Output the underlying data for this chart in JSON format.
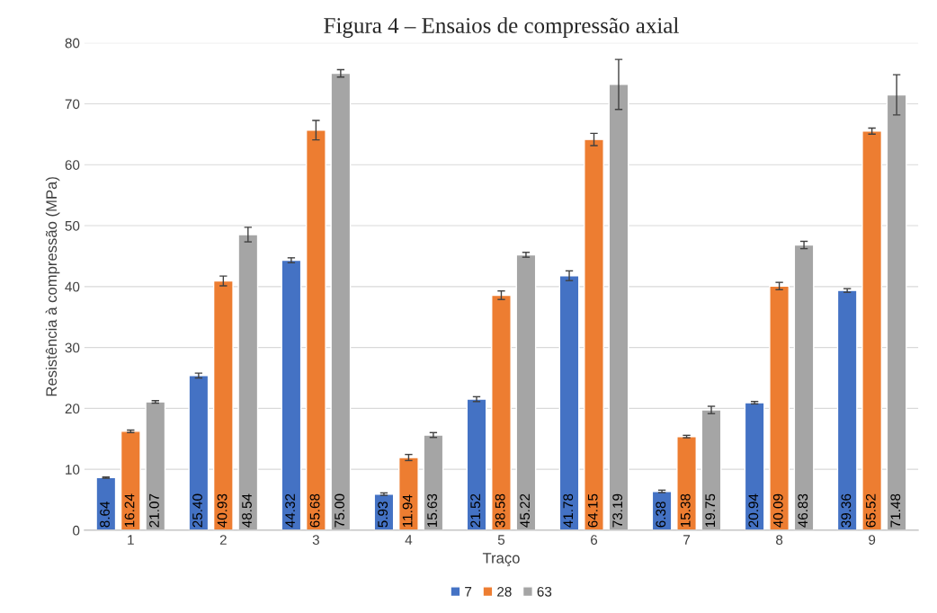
{
  "chart_data": {
    "type": "bar",
    "title": "Figura 4 – Ensaios de compressão axial",
    "xlabel": "Traço",
    "ylabel": "Resistência à compressão (MPa)",
    "categories": [
      "1",
      "2",
      "3",
      "4",
      "5",
      "6",
      "7",
      "8",
      "9"
    ],
    "series": [
      {
        "name": "7",
        "color": "#4472c4",
        "values": [
          8.64,
          25.4,
          44.32,
          5.93,
          21.52,
          41.78,
          6.38,
          20.94,
          39.36
        ],
        "errors": [
          0.1,
          0.4,
          0.4,
          0.2,
          0.4,
          0.8,
          0.2,
          0.2,
          0.3
        ],
        "value_labels": [
          "8.64",
          "25.40",
          "44.32",
          "5.93",
          "21.52",
          "41.78",
          "6.38",
          "20.94",
          "39.36"
        ]
      },
      {
        "name": "28",
        "color": "#ed7d31",
        "values": [
          16.24,
          40.93,
          65.68,
          11.94,
          38.58,
          64.15,
          15.38,
          40.09,
          65.52
        ],
        "errors": [
          0.2,
          0.8,
          1.6,
          0.5,
          0.7,
          1.0,
          0.2,
          0.6,
          0.5
        ],
        "value_labels": [
          "16.24",
          "40.93",
          "65.68",
          "11.94",
          "38.58",
          "64.15",
          "15.38",
          "40.09",
          "65.52"
        ]
      },
      {
        "name": "63",
        "color": "#a5a5a5",
        "values": [
          21.07,
          48.54,
          75.0,
          15.63,
          45.22,
          73.19,
          19.75,
          46.83,
          71.48
        ],
        "errors": [
          0.2,
          1.2,
          0.6,
          0.4,
          0.4,
          4.1,
          0.6,
          0.6,
          3.3
        ],
        "value_labels": [
          "21.07",
          "48.54",
          "75.00",
          "15.63",
          "45.22",
          "73.19",
          "19.75",
          "46.83",
          "71.48"
        ]
      }
    ],
    "ylim": [
      0,
      80
    ],
    "yticks": [
      0,
      10,
      20,
      30,
      40,
      50,
      60,
      70,
      80
    ],
    "grid": "y",
    "legend": "bottom"
  }
}
